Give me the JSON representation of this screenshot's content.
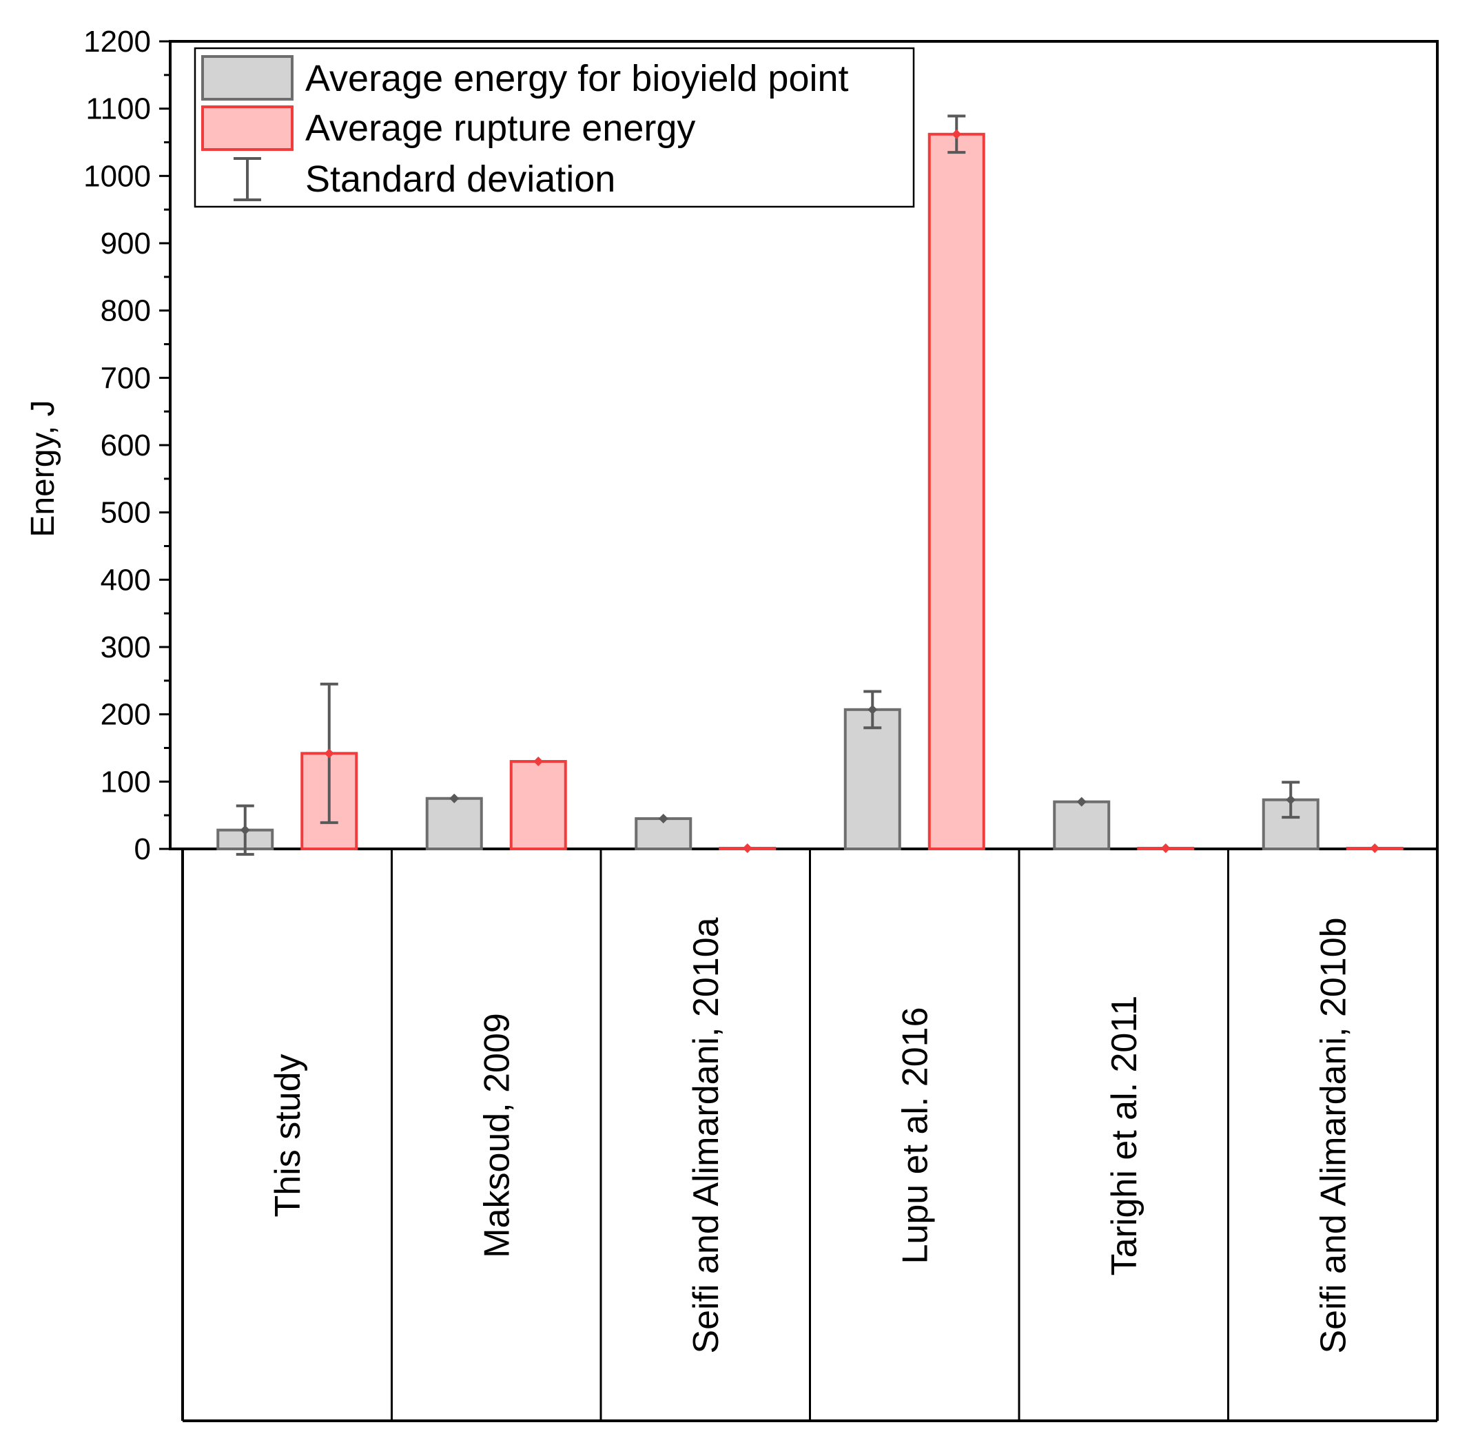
{
  "chart_data": {
    "type": "bar",
    "title": "",
    "xlabel": "",
    "ylabel": "Energy, J",
    "ylim": [
      0,
      1200
    ],
    "yticks": [
      0,
      100,
      200,
      300,
      400,
      500,
      600,
      700,
      800,
      900,
      1000,
      1100,
      1200
    ],
    "grid": false,
    "legend_position": "top-left",
    "categories": [
      "This study",
      "Maksoud, 2009",
      "Seifi and Alimardani, 2010a",
      "Lupu et al. 2016",
      "Tarighi et al. 2011",
      "Seifi and Alimardani, 2010b"
    ],
    "series": [
      {
        "name": "Average energy for bioyield point",
        "values": [
          28,
          75,
          45,
          207,
          70,
          73
        ],
        "errors": [
          36,
          null,
          null,
          27,
          null,
          26
        ],
        "fill": "#d3d3d3",
        "stroke": "#6e6e6e"
      },
      {
        "name": "Average rupture energy",
        "values": [
          142,
          130,
          1,
          1062,
          1,
          1
        ],
        "errors": [
          103,
          null,
          null,
          27,
          null,
          null
        ],
        "fill": "#ffbfbf",
        "stroke": "#f03c3c"
      }
    ],
    "legend_error_label": "Standard deviation",
    "error_bar_color": "#595959"
  }
}
